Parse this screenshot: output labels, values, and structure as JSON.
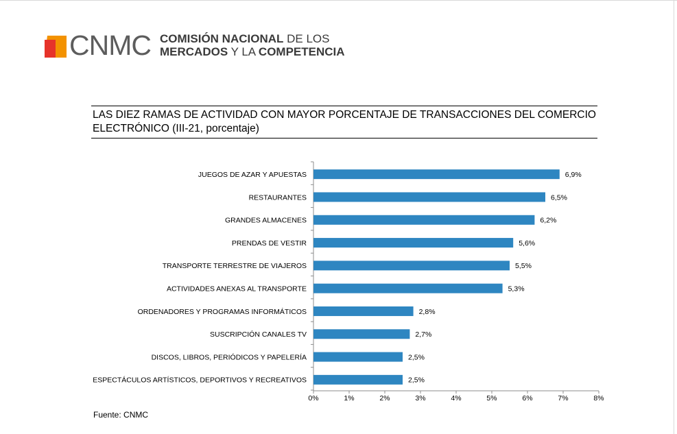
{
  "logo": {
    "acronym": "CNMC",
    "line1_bold": "COMISIÓN NACIONAL",
    "line1_rest": " DE LOS",
    "line2_bold": "MERCADOS",
    "line2_mid": " Y LA ",
    "line2_bold2": "COMPETENCIA",
    "colors": {
      "orange": "#f39200",
      "red": "#e6332a",
      "gray": "#5d5d5d"
    }
  },
  "title": "LAS DIEZ RAMAS DE ACTIVIDAD CON MAYOR PORCENTAJE DE TRANSACCIONES DEL COMERCIO ELECTRÓNICO (III-21, porcentaje)",
  "source": "Fuente: CNMC",
  "chart_data": {
    "type": "bar",
    "orientation": "horizontal",
    "categories": [
      "JUEGOS DE AZAR Y APUESTAS",
      "RESTAURANTES",
      "GRANDES ALMACENES",
      "PRENDAS DE VESTIR",
      "TRANSPORTE TERRESTRE DE VIAJEROS",
      "ACTIVIDADES ANEXAS AL TRANSPORTE",
      "ORDENADORES Y PROGRAMAS INFORMÁTICOS",
      "SUSCRIPCIÓN CANALES TV",
      "DISCOS, LIBROS, PERIÓDICOS Y PAPELERÍA",
      "ESPECTÁCULOS ARTÍSTICOS, DEPORTIVOS Y RECREATIVOS"
    ],
    "values": [
      6.9,
      6.5,
      6.2,
      5.6,
      5.5,
      5.3,
      2.8,
      2.7,
      2.5,
      2.5
    ],
    "value_labels": [
      "6,9%",
      "6,5%",
      "6,2%",
      "5,6%",
      "5,5%",
      "5,3%",
      "2,8%",
      "2,7%",
      "2,5%",
      "2,5%"
    ],
    "x_ticks": [
      0,
      1,
      2,
      3,
      4,
      5,
      6,
      7,
      8
    ],
    "x_tick_labels": [
      "0%",
      "1%",
      "2%",
      "3%",
      "4%",
      "5%",
      "6%",
      "7%",
      "8%"
    ],
    "xlim": [
      0,
      8
    ],
    "xlabel": "",
    "ylabel": "",
    "grid": false,
    "legend": "none",
    "bar_color": "#2e86c1"
  }
}
